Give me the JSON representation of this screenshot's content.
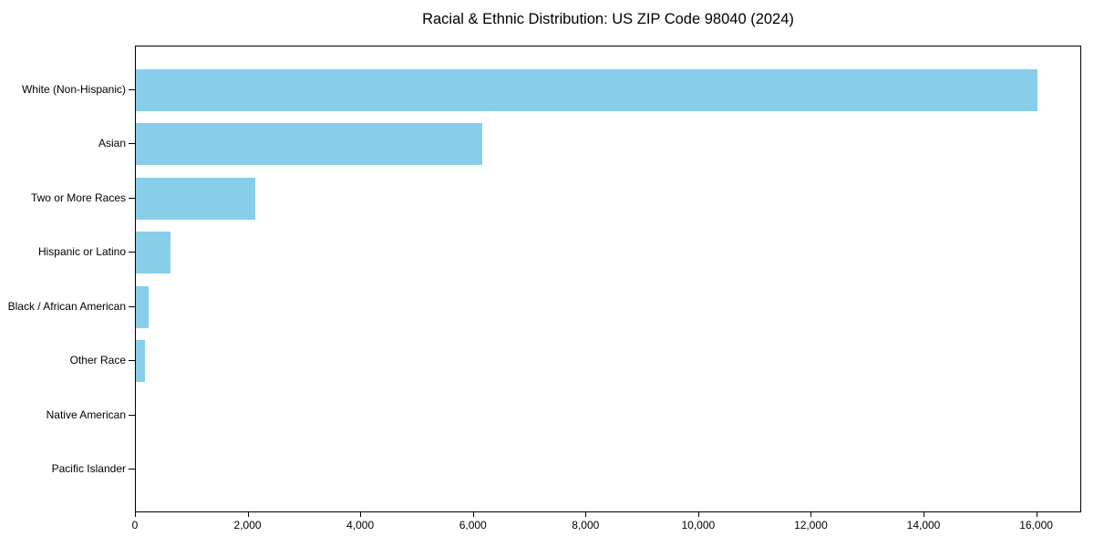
{
  "chart_data": {
    "type": "bar",
    "orientation": "horizontal",
    "title": "Racial & Ethnic Distribution: US ZIP Code 98040 (2024)",
    "categories": [
      "White (Non-Hispanic)",
      "Asian",
      "Two or More Races",
      "Hispanic or Latino",
      "Black / African American",
      "Other Race",
      "Native American",
      "Pacific Islander"
    ],
    "values": [
      16000,
      6150,
      2120,
      620,
      220,
      160,
      0,
      0
    ],
    "xlabel": "",
    "ylabel": "",
    "xlim": [
      0,
      16800
    ],
    "xticks": [
      0,
      2000,
      4000,
      6000,
      8000,
      10000,
      12000,
      14000,
      16000
    ],
    "xtick_labels": [
      "0",
      "2,000",
      "4,000",
      "6,000",
      "8,000",
      "10,000",
      "12,000",
      "14,000",
      "16,000"
    ],
    "bar_color": "#87CEEB",
    "text_color": "#000000",
    "grid": false,
    "legend": null
  }
}
